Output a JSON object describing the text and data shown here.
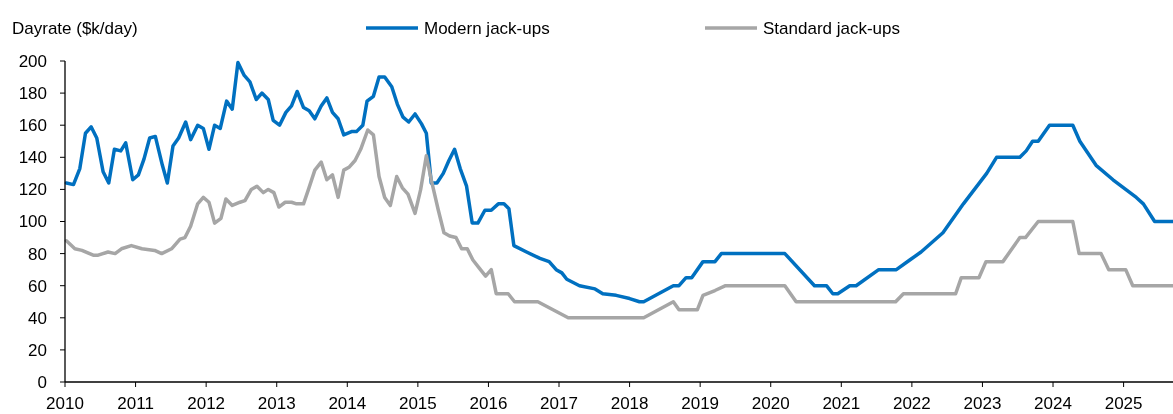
{
  "chart_data": {
    "type": "line",
    "ylabel": "Dayrate ($k/day)",
    "xlim": [
      2010,
      2025.7
    ],
    "xticks": [
      2010,
      2011,
      2012,
      2013,
      2014,
      2015,
      2016,
      2017,
      2018,
      2019,
      2020,
      2021,
      2022,
      2023,
      2024,
      2025
    ],
    "ylim": [
      0,
      200
    ],
    "yticks": [
      0,
      20,
      40,
      60,
      80,
      100,
      120,
      140,
      160,
      180,
      200
    ],
    "grid": false,
    "legend": "top",
    "marker": "none",
    "line_style": "solid",
    "series": [
      {
        "name": "Modern jack-ups",
        "color": "#0070c0",
        "x": [
          2010.02,
          2010.12,
          2010.21,
          2010.29,
          2010.37,
          2010.45,
          2010.54,
          2010.62,
          2010.7,
          2010.79,
          2010.86,
          2010.96,
          2011.04,
          2011.12,
          2011.2,
          2011.28,
          2011.38,
          2011.45,
          2011.53,
          2011.61,
          2011.71,
          2011.78,
          2011.88,
          2011.96,
          2012.04,
          2012.12,
          2012.2,
          2012.29,
          2012.37,
          2012.45,
          2012.54,
          2012.62,
          2012.71,
          2012.79,
          2012.88,
          2012.95,
          2013.04,
          2013.13,
          2013.21,
          2013.29,
          2013.38,
          2013.46,
          2013.54,
          2013.63,
          2013.71,
          2013.79,
          2013.87,
          2013.95,
          2014.06,
          2014.13,
          2014.22,
          2014.28,
          2014.37,
          2014.45,
          2014.53,
          2014.63,
          2014.71,
          2014.79,
          2014.87,
          2014.96,
          2015.05,
          2015.12,
          2015.19,
          2015.27,
          2015.36,
          2015.44,
          2015.52,
          2015.6,
          2015.69,
          2015.77,
          2015.85,
          2015.95,
          2016.04,
          2016.14,
          2016.22,
          2016.29,
          2016.36,
          2016.54,
          2016.73,
          2016.86,
          2016.96,
          2017.04,
          2017.11,
          2017.29,
          2017.51,
          2017.62,
          2017.81,
          2018.0,
          2018.14,
          2018.2,
          2018.62,
          2018.7,
          2018.8,
          2018.88,
          2019.04,
          2019.21,
          2019.3,
          2020.2,
          2020.62,
          2020.79,
          2020.88,
          2020.95,
          2021.12,
          2021.21,
          2021.53,
          2021.78,
          2021.97,
          2022.13,
          2022.44,
          2022.73,
          2023.06,
          2023.2,
          2023.53,
          2023.62,
          2023.71,
          2023.79,
          2023.95,
          2024.28,
          2024.38,
          2024.61,
          2024.85,
          2025.18,
          2025.28,
          2025.44,
          2025.7
        ],
        "values": [
          124,
          123,
          133,
          155,
          159,
          152,
          131,
          124,
          145,
          144,
          149,
          126,
          129,
          139,
          152,
          153,
          135,
          124,
          147,
          152,
          162,
          151,
          160,
          158,
          145,
          160,
          158,
          175,
          170,
          199,
          191,
          187,
          176,
          180,
          176,
          163,
          160,
          168,
          172,
          181,
          171,
          169,
          164,
          172,
          177,
          168,
          164,
          154,
          156,
          156,
          160,
          175,
          178,
          190,
          190,
          184,
          173,
          165,
          162,
          167,
          161,
          155,
          124,
          124,
          130,
          138,
          145,
          133,
          122,
          99,
          99,
          107,
          107,
          111,
          111,
          108,
          85,
          81,
          77,
          75,
          70,
          68,
          64,
          60,
          58,
          55,
          54,
          52,
          50,
          50,
          60,
          60,
          65,
          65,
          75,
          75,
          80,
          80,
          60,
          60,
          55,
          55,
          60,
          60,
          70,
          70,
          76,
          81,
          93,
          111,
          130,
          140,
          140,
          144,
          150,
          150,
          160,
          160,
          150,
          135,
          126,
          115,
          111,
          100,
          100
        ]
      },
      {
        "name": "Standard jack-ups",
        "color": "#a6a6a6",
        "x": [
          2010.02,
          2010.14,
          2010.24,
          2010.4,
          2010.47,
          2010.61,
          2010.71,
          2010.8,
          2010.94,
          2011.09,
          2011.27,
          2011.37,
          2011.51,
          2011.63,
          2011.7,
          2011.78,
          2011.88,
          2011.96,
          2012.04,
          2012.12,
          2012.21,
          2012.28,
          2012.37,
          2012.48,
          2012.55,
          2012.64,
          2012.72,
          2012.81,
          2012.88,
          2012.96,
          2013.03,
          2013.12,
          2013.21,
          2013.28,
          2013.38,
          2013.45,
          2013.54,
          2013.63,
          2013.71,
          2013.79,
          2013.87,
          2013.95,
          2014.03,
          2014.11,
          2014.19,
          2014.29,
          2014.37,
          2014.45,
          2014.53,
          2014.61,
          2014.7,
          2014.78,
          2014.86,
          2014.96,
          2015.04,
          2015.12,
          2015.19,
          2015.29,
          2015.37,
          2015.45,
          2015.54,
          2015.62,
          2015.7,
          2015.78,
          2015.87,
          2015.96,
          2016.04,
          2016.11,
          2016.28,
          2016.37,
          2016.7,
          2017.13,
          2018.2,
          2018.62,
          2018.7,
          2018.96,
          2019.04,
          2019.21,
          2019.36,
          2020.2,
          2020.36,
          2021.77,
          2021.88,
          2022.62,
          2022.7,
          2022.95,
          2023.05,
          2023.29,
          2023.53,
          2023.61,
          2023.79,
          2024.28,
          2024.37,
          2024.68,
          2024.79,
          2025.03,
          2025.13,
          2025.7
        ],
        "values": [
          88,
          83,
          82,
          79,
          79,
          81,
          80,
          83,
          85,
          83,
          82,
          80,
          83,
          89,
          90,
          97,
          111,
          115,
          112,
          99,
          102,
          114,
          110,
          112,
          113,
          120,
          122,
          118,
          120,
          118,
          109,
          112,
          112,
          111,
          111,
          120,
          132,
          137,
          126,
          129,
          115,
          132,
          134,
          138,
          145,
          157,
          154,
          128,
          115,
          110,
          128,
          121,
          117,
          105,
          120,
          141,
          126,
          107,
          93,
          91,
          90,
          83,
          83,
          76,
          71,
          66,
          70,
          55,
          55,
          50,
          50,
          40,
          40,
          50,
          45,
          45,
          54,
          57,
          60,
          60,
          50,
          50,
          55,
          55,
          65,
          65,
          75,
          75,
          90,
          90,
          100,
          100,
          80,
          80,
          70,
          70,
          60,
          60
        ]
      }
    ]
  }
}
